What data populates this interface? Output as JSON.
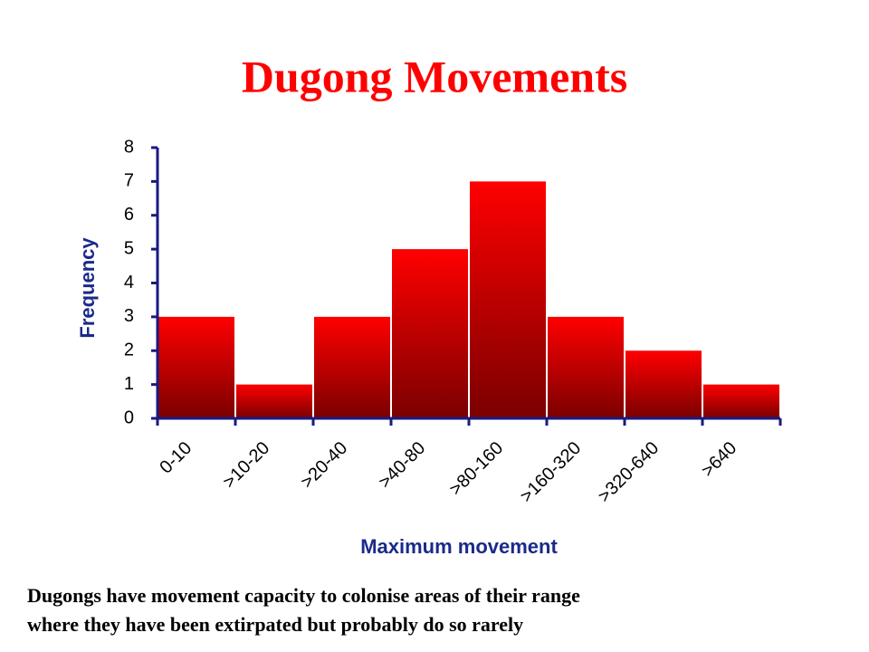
{
  "chart_data": {
    "type": "bar",
    "title": "Dugong Movements",
    "categories": [
      "0-10",
      ">10-20",
      ">20-40",
      ">40-80",
      ">80-160",
      ">160-320",
      ">320-640",
      ">640"
    ],
    "values": [
      3,
      1,
      3,
      5,
      7,
      3,
      2,
      1
    ],
    "color": "#ff0000",
    "ylim": [
      0,
      8
    ],
    "yticks": [
      0,
      1,
      2,
      3,
      4,
      5,
      6,
      7,
      8
    ],
    "y_label": "Frequency",
    "x_label": "Maximum movement",
    "annotations": [
      "Dugongs have movement capacity to colonise areas of their range",
      "where they have been extirpated but probably do so rarely"
    ]
  }
}
